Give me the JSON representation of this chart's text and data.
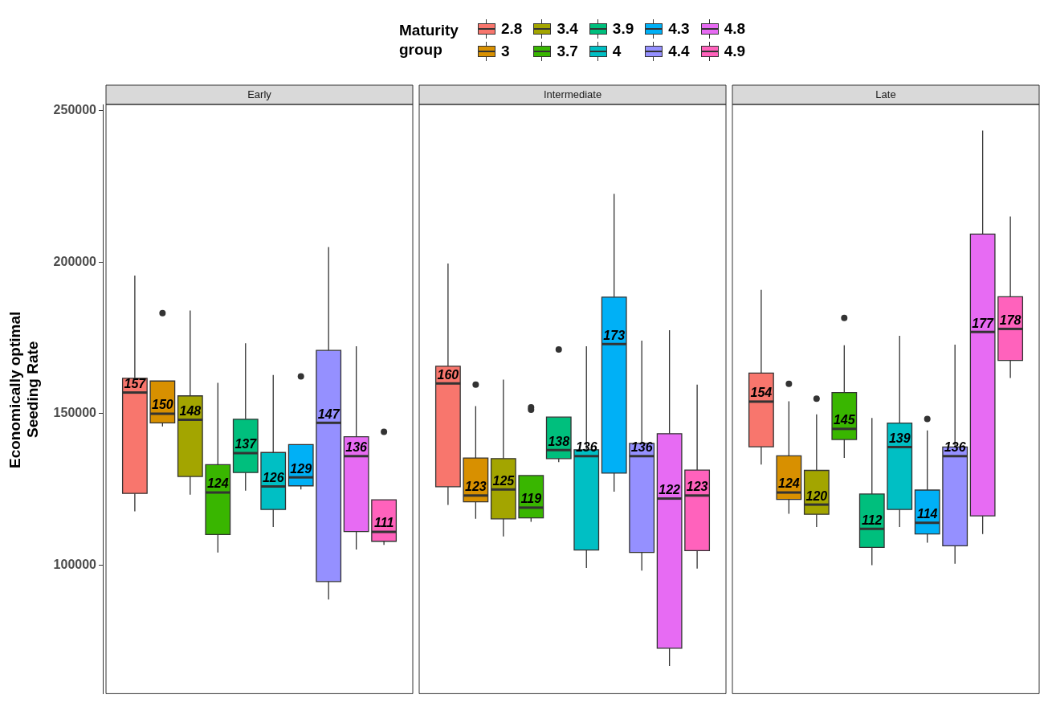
{
  "chart_data": {
    "type": "box",
    "ylabel": "Economically optimal Seeding Rate",
    "legend_title": "Maturity group",
    "legend": "top",
    "categories": [
      "Early",
      "Intermediate",
      "Late"
    ],
    "ylim": [
      57600,
      252100
    ],
    "yticks": [
      100000,
      150000,
      200000,
      250000
    ],
    "series": [
      {
        "name": "2.8",
        "color": "#f8766d",
        "boxes": [
          {
            "low": 117800,
            "q1": 123700,
            "median": 157000,
            "q3": 161700,
            "high": 195600
          },
          {
            "low": 119900,
            "q1": 125900,
            "median": 160000,
            "q3": 165700,
            "high": 199600
          },
          {
            "low": 133200,
            "q1": 139100,
            "median": 154000,
            "q3": 163400,
            "high": 190900
          }
        ],
        "value_labels": [
          "157",
          "160",
          "154"
        ]
      },
      {
        "name": "3",
        "color": "#d89000",
        "boxes": [
          {
            "low": 145800,
            "q1": 147000,
            "median": 150000,
            "q3": 160800,
            "high": 160800,
            "outliers": [
              183200
            ]
          },
          {
            "low": 115300,
            "q1": 120900,
            "median": 123000,
            "q3": 135400,
            "high": 152500,
            "outliers": [
              159600
            ]
          },
          {
            "low": 117000,
            "q1": 121700,
            "median": 124000,
            "q3": 136100,
            "high": 154100,
            "outliers": [
              159900
            ]
          }
        ],
        "value_labels": [
          "150",
          "123",
          "124"
        ]
      },
      {
        "name": "3.4",
        "color": "#a3a500",
        "boxes": [
          {
            "low": 123300,
            "q1": 129300,
            "median": 148000,
            "q3": 155900,
            "high": 184100
          },
          {
            "low": 109500,
            "q1": 115300,
            "median": 125000,
            "q3": 135200,
            "high": 161300
          },
          {
            "low": 112600,
            "q1": 116800,
            "median": 120000,
            "q3": 131300,
            "high": 149800,
            "outliers": [
              155000
            ]
          }
        ],
        "value_labels": [
          "148",
          "125",
          "120"
        ]
      },
      {
        "name": "3.7",
        "color": "#39b600",
        "boxes": [
          {
            "low": 104200,
            "q1": 110100,
            "median": 124000,
            "q3": 133200,
            "high": 160200
          },
          {
            "low": 114300,
            "q1": 115600,
            "median": 119000,
            "q3": 129600,
            "high": 129600,
            "outliers": [
              152100,
              151300
            ]
          },
          {
            "low": 135400,
            "q1": 141500,
            "median": 145000,
            "q3": 157000,
            "high": 172600,
            "outliers": [
              181600
            ]
          }
        ],
        "value_labels": [
          "124",
          "119",
          "145"
        ]
      },
      {
        "name": "3.9",
        "color": "#00bf7d",
        "boxes": [
          {
            "low": 124600,
            "q1": 130600,
            "median": 137000,
            "q3": 148200,
            "high": 173300
          },
          {
            "low": 134000,
            "q1": 135200,
            "median": 138000,
            "q3": 148900,
            "high": 148900,
            "outliers": [
              171200
            ]
          },
          {
            "low": 100000,
            "q1": 105900,
            "median": 112000,
            "q3": 123500,
            "high": 148600
          }
        ],
        "value_labels": [
          "137",
          "138",
          "112"
        ]
      },
      {
        "name": "4",
        "color": "#00bfc4",
        "boxes": [
          {
            "low": 112600,
            "q1": 118400,
            "median": 126000,
            "q3": 137200,
            "high": 162800
          },
          {
            "low": 99100,
            "q1": 105000,
            "median": 136000,
            "q3": 138100,
            "high": 172300
          },
          {
            "low": 112600,
            "q1": 118400,
            "median": 139000,
            "q3": 146900,
            "high": 175700
          }
        ],
        "value_labels": [
          "126",
          "136",
          "139"
        ]
      },
      {
        "name": "4.3",
        "color": "#00b0f6",
        "boxes": [
          {
            "low": 125000,
            "q1": 126200,
            "median": 129000,
            "q3": 139800,
            "high": 139800,
            "outliers": [
              162300
            ]
          },
          {
            "low": 124300,
            "q1": 130400,
            "median": 173000,
            "q3": 188500,
            "high": 222600
          },
          {
            "low": 107400,
            "q1": 110300,
            "median": 114000,
            "q3": 124800,
            "high": 144500,
            "outliers": [
              148300
            ]
          }
        ],
        "value_labels": [
          "129",
          "173",
          "114"
        ]
      },
      {
        "name": "4.4",
        "color": "#9590ff",
        "boxes": [
          {
            "low": 88700,
            "q1": 94600,
            "median": 147000,
            "q3": 170900,
            "high": 205000
          },
          {
            "low": 98200,
            "q1": 104200,
            "median": 136000,
            "q3": 140200,
            "high": 174100
          },
          {
            "low": 100500,
            "q1": 106400,
            "median": 136000,
            "q3": 139000,
            "high": 172800
          }
        ],
        "value_labels": [
          "147",
          "136",
          "136"
        ]
      },
      {
        "name": "4.8",
        "color": "#e76bf3",
        "boxes": [
          {
            "low": 105200,
            "q1": 111100,
            "median": 136000,
            "q3": 142400,
            "high": 172300
          },
          {
            "low": 66700,
            "q1": 72600,
            "median": 122000,
            "q3": 143400,
            "high": 177600
          },
          {
            "low": 110300,
            "q1": 116300,
            "median": 177000,
            "q3": 209300,
            "high": 243500
          }
        ],
        "value_labels": [
          "136",
          "122",
          "177"
        ]
      },
      {
        "name": "4.9",
        "color": "#ff62bc",
        "boxes": [
          {
            "low": 106700,
            "q1": 107900,
            "median": 111000,
            "q3": 121600,
            "high": 121600,
            "outliers": [
              144000
            ]
          },
          {
            "low": 98900,
            "q1": 104800,
            "median": 123000,
            "q3": 131400,
            "high": 159600
          },
          {
            "low": 161800,
            "q1": 167600,
            "median": 178000,
            "q3": 188600,
            "high": 215100
          }
        ],
        "value_labels": [
          "111",
          "123",
          "178"
        ]
      }
    ]
  }
}
